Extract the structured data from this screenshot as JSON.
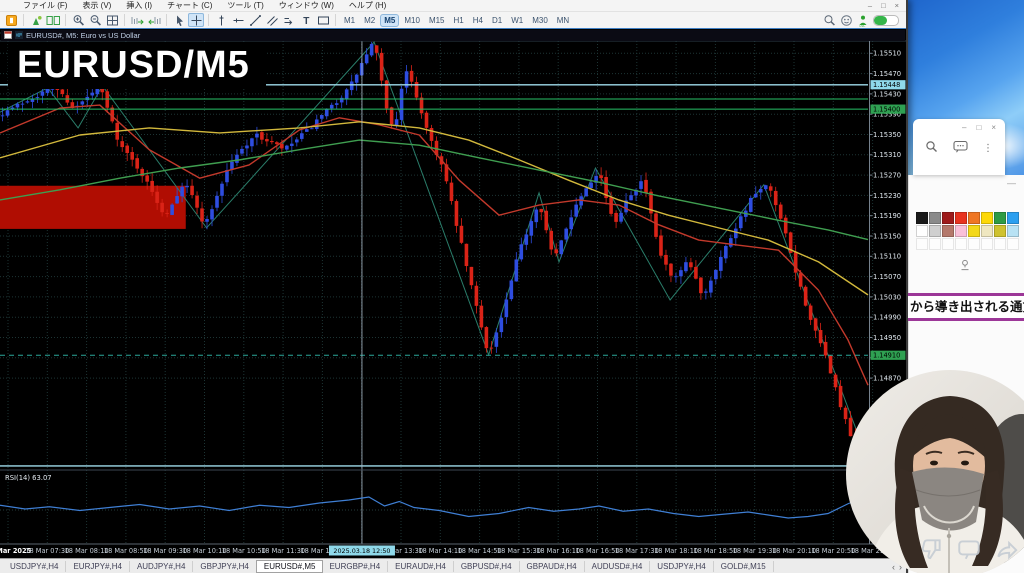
{
  "menu_bar": {
    "items": [
      "ファイル (F)",
      "表示 (V)",
      "挿入 (I)",
      "チャート (C)",
      "ツール (T)",
      "ウィンドウ (W)",
      "ヘルプ (H)"
    ]
  },
  "window_controls": [
    "minimize",
    "restore",
    "close"
  ],
  "toolbar": {
    "icons_left": [
      "new-order-icon",
      "algo-trading-icon",
      "profiles-icon",
      "zoom-in-icon",
      "zoom-out-icon",
      "tile-windows-icon",
      "auto-scroll-icon",
      "chart-shift-icon",
      "cursor-icon",
      "crosshair-icon",
      "vertical-line-icon",
      "horizontal-line-icon",
      "trendline-icon",
      "channel-icon",
      "equidistant-channel-icon",
      "text-label-icon",
      "rectangle-icon"
    ],
    "active_tool": "crosshair-icon",
    "timeframes": [
      "M1",
      "M2",
      "M5",
      "M10",
      "M15",
      "H1",
      "H4",
      "D1",
      "W1",
      "M30",
      "MN"
    ],
    "active_timeframe": "M5",
    "icons_right": [
      "search-icon",
      "community-icon",
      "algo-status-icon"
    ]
  },
  "chart": {
    "window_title": "EURUSD#, M5:  Euro vs US Dollar",
    "overlay_banner": "EURUSD/M5",
    "rsi_label": "RSI(14) 63.07",
    "rsi_zero_label": "0.00",
    "price_axis_labels": [
      "1.15550",
      "1.15510",
      "1.15470",
      "1.15430",
      "1.15390",
      "1.15350",
      "1.15310",
      "1.15270",
      "1.15230",
      "1.15190",
      "1.15150",
      "1.15110",
      "1.15070",
      "1.15030",
      "1.14990",
      "1.14950",
      "1.14910",
      "1.14870"
    ],
    "crosshair_price_label": "1.15448",
    "bid_price_label": "1.15400",
    "level_price_label": "1.14910",
    "crosshair_time_label": "2025.03.18 12:50",
    "time_axis_labels": [
      "18 Mar 2025",
      "18 Mar 07:30",
      "18 Mar 08:10",
      "18 Mar 08:50",
      "18 Mar 09:30",
      "18 Mar 10:10",
      "18 Mar 10:50",
      "18 Mar 11:30",
      "18 Mar 12:10",
      "18 Mar 12:50",
      "18 Mar 13:30",
      "18 Mar 14:10",
      "18 Mar 14:50",
      "18 Mar 15:30",
      "18 Mar 16:10",
      "18 Mar 16:50",
      "18 Mar 17:30",
      "18 Mar 18:10",
      "18 Mar 18:50",
      "18 Mar 19:30",
      "18 Mar 20:10",
      "18 Mar 20:50",
      "18 Mar 21:30"
    ]
  },
  "tab_bar": {
    "tabs": [
      "USDJPY#,H4",
      "EURJPY#,H4",
      "AUDJPY#,H4",
      "GBPJPY#,H4",
      "EURUSD#,M5",
      "EURGBP#,H4",
      "EURAUD#,H4",
      "GBPUSD#,H4",
      "GBPAUD#,H4",
      "AUDUSD#,H4",
      "USDJPY#,H4",
      "GOLD#,M15"
    ],
    "active_index": 4
  },
  "side_panel": {
    "window_controls": [
      "minimize",
      "maximize",
      "close"
    ],
    "palette_row1": [
      "#1a1a1a",
      "#8a8a8a",
      "#9e1b1b",
      "#e8331f",
      "#ef7623",
      "#fdd807",
      "#2e9b45",
      "#2b9ff0"
    ],
    "palette_row2": [
      "#ffffff",
      "#cfcfcf",
      "#b4786b",
      "#f9c0d8",
      "#f3d818",
      "#efe7c0",
      "#cfc22f",
      "#b8e2f4"
    ],
    "palette_empty_cells": 8,
    "caption_text": "から導き出される通貨は"
  },
  "chart_data": {
    "type": "candlestick",
    "symbol": "EURUSD#",
    "timeframe": "M5",
    "price_range": {
      "top": 1.1555,
      "bottom": 1.1487,
      "grid_step": 0.0004
    },
    "time_range": {
      "start": "18 Mar 07:10",
      "end": "18 Mar 21:30",
      "label_interval_minutes": 40
    },
    "candle_count": 174,
    "close_path": [
      [
        0.0,
        1.1539
      ],
      [
        0.034,
        1.1542
      ],
      [
        0.063,
        1.15445
      ],
      [
        0.086,
        1.154
      ],
      [
        0.115,
        1.15445
      ],
      [
        0.138,
        1.1533
      ],
      [
        0.161,
        1.1528
      ],
      [
        0.19,
        1.1519
      ],
      [
        0.213,
        1.1526
      ],
      [
        0.236,
        1.1517
      ],
      [
        0.264,
        1.1529
      ],
      [
        0.293,
        1.1535
      ],
      [
        0.328,
        1.1532
      ],
      [
        0.356,
        1.1536
      ],
      [
        0.379,
        1.154
      ],
      [
        0.402,
        1.1544
      ],
      [
        0.42,
        1.155
      ],
      [
        0.431,
        1.15535
      ],
      [
        0.443,
        1.1542
      ],
      [
        0.454,
        1.1535
      ],
      [
        0.466,
        1.1548
      ],
      [
        0.477,
        1.1544
      ],
      [
        0.494,
        1.1535
      ],
      [
        0.511,
        1.1528
      ],
      [
        0.529,
        1.1515
      ],
      [
        0.546,
        1.1503
      ],
      [
        0.563,
        1.14915
      ],
      [
        0.58,
        1.15
      ],
      [
        0.598,
        1.1512
      ],
      [
        0.621,
        1.1522
      ],
      [
        0.638,
        1.151
      ],
      [
        0.655,
        1.1518
      ],
      [
        0.672,
        1.1524
      ],
      [
        0.69,
        1.1528
      ],
      [
        0.707,
        1.1517
      ],
      [
        0.724,
        1.1523
      ],
      [
        0.741,
        1.1526
      ],
      [
        0.759,
        1.1512
      ],
      [
        0.776,
        1.1506
      ],
      [
        0.793,
        1.151
      ],
      [
        0.81,
        1.1503
      ],
      [
        0.828,
        1.151
      ],
      [
        0.851,
        1.1518
      ],
      [
        0.868,
        1.1523
      ],
      [
        0.885,
        1.1525
      ],
      [
        0.902,
        1.1517
      ],
      [
        0.92,
        1.1506
      ],
      [
        0.937,
        1.1497
      ],
      [
        0.954,
        1.149
      ],
      [
        0.971,
        1.148
      ],
      [
        0.983,
        1.1474
      ],
      [
        0.994,
        1.1478
      ]
    ],
    "moving_averages": [
      {
        "name": "fast",
        "color": "#c2392b",
        "points": [
          [
            0,
            1.15353
          ],
          [
            0.069,
            1.15402
          ],
          [
            0.115,
            1.15408
          ],
          [
            0.172,
            1.1532
          ],
          [
            0.23,
            1.15264
          ],
          [
            0.287,
            1.1529
          ],
          [
            0.345,
            1.15359
          ],
          [
            0.391,
            1.15383
          ],
          [
            0.437,
            1.15369
          ],
          [
            0.483,
            1.15349
          ],
          [
            0.529,
            1.1526
          ],
          [
            0.575,
            1.15191
          ],
          [
            0.621,
            1.15211
          ],
          [
            0.667,
            1.15221
          ],
          [
            0.713,
            1.15211
          ],
          [
            0.759,
            1.15172
          ],
          [
            0.805,
            1.15142
          ],
          [
            0.851,
            1.15132
          ],
          [
            0.897,
            1.15122
          ],
          [
            0.943,
            1.15043
          ],
          [
            0.977,
            1.14945
          ],
          [
            1,
            1.14856
          ]
        ]
      },
      {
        "name": "medium",
        "color": "#d2b83c",
        "points": [
          [
            0,
            1.15304
          ],
          [
            0.092,
            1.15349
          ],
          [
            0.172,
            1.15363
          ],
          [
            0.253,
            1.15353
          ],
          [
            0.345,
            1.15363
          ],
          [
            0.414,
            1.15375
          ],
          [
            0.483,
            1.15363
          ],
          [
            0.54,
            1.15339
          ],
          [
            0.598,
            1.153
          ],
          [
            0.655,
            1.1526
          ],
          [
            0.713,
            1.15221
          ],
          [
            0.77,
            1.15191
          ],
          [
            0.828,
            1.15166
          ],
          [
            0.885,
            1.15142
          ],
          [
            0.943,
            1.15099
          ],
          [
            1,
            1.15034
          ]
        ]
      },
      {
        "name": "slow",
        "color": "#3f9e50",
        "points": [
          [
            0,
            1.15221
          ],
          [
            0.069,
            1.15241
          ],
          [
            0.138,
            1.15264
          ],
          [
            0.207,
            1.15284
          ],
          [
            0.276,
            1.153
          ],
          [
            0.345,
            1.1532
          ],
          [
            0.414,
            1.15339
          ],
          [
            0.483,
            1.15329
          ],
          [
            0.552,
            1.15304
          ],
          [
            0.621,
            1.1528
          ],
          [
            0.69,
            1.15256
          ],
          [
            0.759,
            1.15229
          ],
          [
            0.828,
            1.15205
          ],
          [
            0.897,
            1.15181
          ],
          [
            0.954,
            1.15162
          ],
          [
            1,
            1.15143
          ]
        ]
      }
    ],
    "zigzag": {
      "color": "#2a7d6a",
      "points": [
        [
          0,
          1.15394
        ],
        [
          0.055,
          1.15442
        ],
        [
          0.09,
          1.15363
        ],
        [
          0.118,
          1.15446
        ],
        [
          0.238,
          1.15166
        ],
        [
          0.431,
          1.15532
        ],
        [
          0.563,
          1.14916
        ],
        [
          0.621,
          1.15235
        ],
        [
          0.644,
          1.15099
        ],
        [
          0.686,
          1.15284
        ],
        [
          0.772,
          1.15024
        ],
        [
          0.88,
          1.15251
        ],
        [
          0.991,
          1.14748
        ]
      ]
    },
    "levels": {
      "green_lines": [
        1.1542,
        1.154
      ],
      "lightblue_lines": [
        1.15448,
        1.14697
      ],
      "dashed_level": 1.14915
    },
    "red_zone": {
      "t_start": 0,
      "t_end": 0.214,
      "price_top": 1.15249,
      "price_bottom": 1.15164
    },
    "crosshair": {
      "t": 0.417,
      "price": 1.15448,
      "time": "2025.03.18 12:50"
    },
    "rsi": {
      "period": 14,
      "current": 63.07,
      "color": "#3f7fd4",
      "points": [
        [
          0,
          53
        ],
        [
          0.029,
          48
        ],
        [
          0.057,
          51
        ],
        [
          0.092,
          46
        ],
        [
          0.126,
          50
        ],
        [
          0.161,
          54
        ],
        [
          0.195,
          48
        ],
        [
          0.23,
          52
        ],
        [
          0.264,
          46
        ],
        [
          0.299,
          53
        ],
        [
          0.333,
          50
        ],
        [
          0.368,
          56
        ],
        [
          0.402,
          60
        ],
        [
          0.425,
          64
        ],
        [
          0.443,
          52
        ],
        [
          0.46,
          58
        ],
        [
          0.477,
          50
        ],
        [
          0.506,
          46
        ],
        [
          0.54,
          38
        ],
        [
          0.575,
          42
        ],
        [
          0.609,
          50
        ],
        [
          0.638,
          45
        ],
        [
          0.667,
          48
        ],
        [
          0.69,
          52
        ],
        [
          0.718,
          45
        ],
        [
          0.747,
          48
        ],
        [
          0.776,
          42
        ],
        [
          0.805,
          38
        ],
        [
          0.833,
          41
        ],
        [
          0.862,
          44
        ],
        [
          0.885,
          40
        ],
        [
          0.908,
          36
        ],
        [
          0.931,
          38
        ],
        [
          0.954,
          42
        ],
        [
          0.977,
          55
        ],
        [
          0.994,
          63
        ]
      ]
    }
  }
}
